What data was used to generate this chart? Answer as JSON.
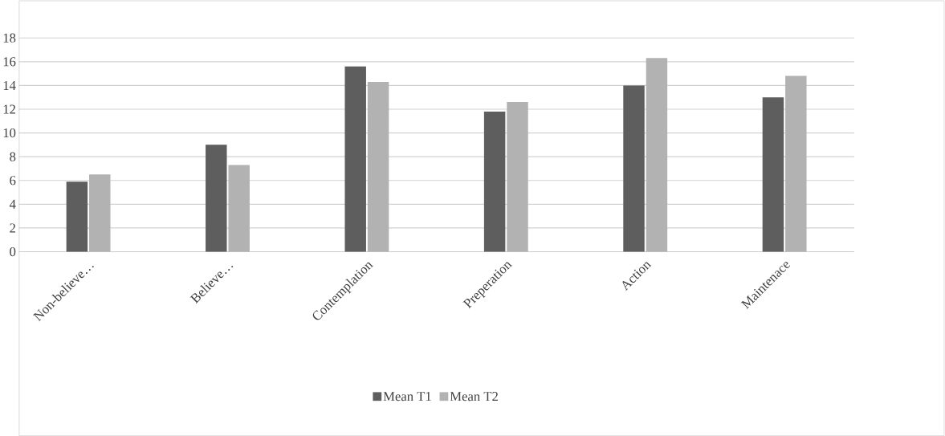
{
  "chart_data": {
    "type": "bar",
    "categories": [
      "Non-believe…",
      "Believe…",
      "Contemplation",
      "Preperation",
      "Action",
      "Maintenace"
    ],
    "series": [
      {
        "name": "Mean T1",
        "color": "#5e5e5e",
        "values": [
          5.9,
          9.0,
          15.6,
          11.8,
          14.0,
          13.0
        ]
      },
      {
        "name": "Mean T2",
        "color": "#b2b2b2",
        "values": [
          6.5,
          7.3,
          14.3,
          12.6,
          16.3,
          14.8
        ]
      }
    ],
    "ylim": [
      0,
      18
    ],
    "yticks": [
      0,
      2,
      4,
      6,
      8,
      10,
      12,
      14,
      16,
      18
    ],
    "grid": "y",
    "legend": "bottom"
  }
}
